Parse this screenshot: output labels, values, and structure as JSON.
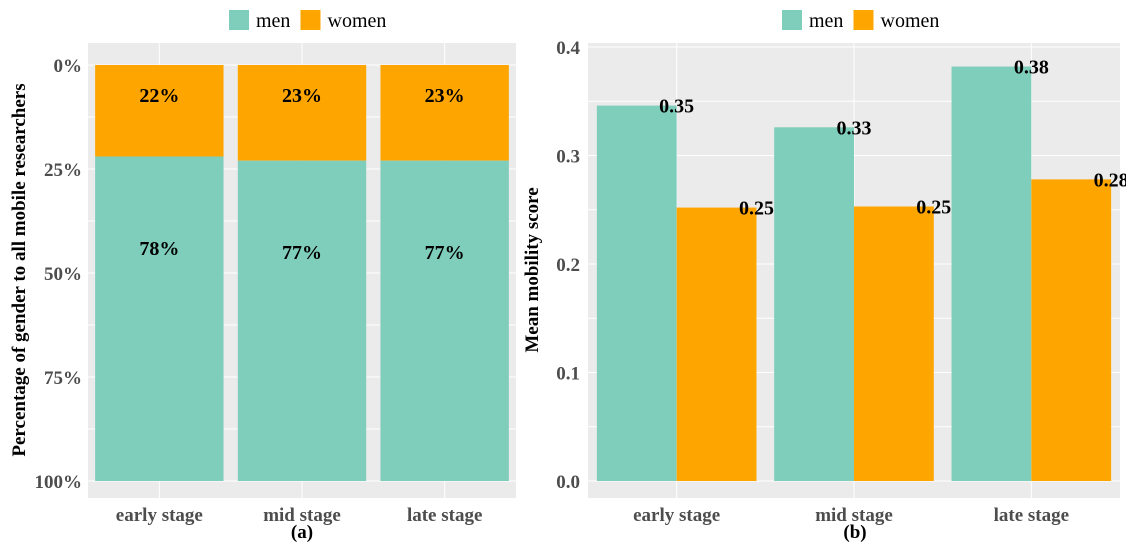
{
  "colors": {
    "men": "#7fcdbb",
    "women": "#ffa500"
  },
  "chart_data": [
    {
      "type": "bar",
      "stacked": true,
      "panel_label": "(a)",
      "ylabel": "Percentage of gender to all mobile researchers",
      "categories": [
        "early stage",
        "mid stage",
        "late stage"
      ],
      "series": [
        {
          "name": "women",
          "values": [
            0.22,
            0.23,
            0.23
          ],
          "labels": [
            "22%",
            "23%",
            "23%"
          ]
        },
        {
          "name": "men",
          "values": [
            0.78,
            0.77,
            0.77
          ],
          "labels": [
            "78%",
            "77%",
            "77%"
          ]
        }
      ],
      "yticks": [
        "0%",
        "25%",
        "50%",
        "75%",
        "100%"
      ],
      "yaxis_reversed": true,
      "ylim": [
        0,
        1
      ],
      "legend": {
        "position": "top",
        "items": [
          "men",
          "women"
        ]
      },
      "grid": true
    },
    {
      "type": "bar",
      "stacked": false,
      "panel_label": "(b)",
      "ylabel": "Mean mobility score",
      "categories": [
        "early stage",
        "mid stage",
        "late stage"
      ],
      "series": [
        {
          "name": "men",
          "values": [
            0.346,
            0.326,
            0.382
          ],
          "labels": [
            "0.35",
            "0.33",
            "0.38"
          ]
        },
        {
          "name": "women",
          "values": [
            0.252,
            0.253,
            0.278
          ],
          "labels": [
            "0.25",
            "0.25",
            "0.28"
          ]
        }
      ],
      "yticks": [
        "0.0",
        "0.1",
        "0.2",
        "0.3",
        "0.4"
      ],
      "ylim": [
        0,
        0.4
      ],
      "legend": {
        "position": "top",
        "items": [
          "men",
          "women"
        ]
      },
      "grid": true
    }
  ]
}
